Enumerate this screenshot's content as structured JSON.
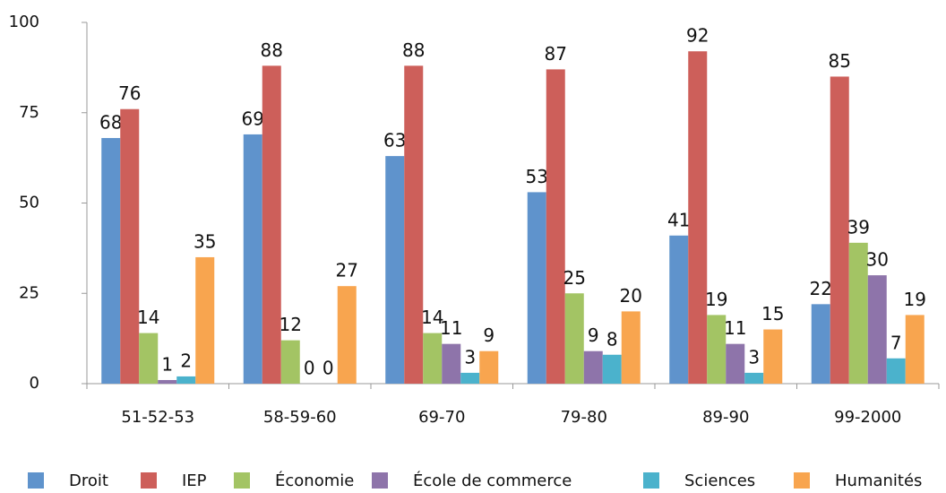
{
  "chart_data": {
    "type": "bar",
    "categories": [
      "51-52-53",
      "58-59-60",
      "69-70",
      "79-80",
      "89-90",
      "99-2000"
    ],
    "series": [
      {
        "name": "Droit",
        "color": "#5f93cc",
        "values": [
          68,
          69,
          63,
          53,
          41,
          22
        ]
      },
      {
        "name": "IEP",
        "color": "#cd5f5a",
        "values": [
          76,
          88,
          88,
          87,
          92,
          85
        ]
      },
      {
        "name": "Économie",
        "color": "#a3c464",
        "values": [
          14,
          12,
          14,
          25,
          19,
          39
        ]
      },
      {
        "name": "École de commerce",
        "color": "#8e74aa",
        "values": [
          1,
          0,
          11,
          9,
          11,
          30
        ]
      },
      {
        "name": "Sciences",
        "color": "#4bb2cc",
        "values": [
          2,
          0,
          3,
          8,
          3,
          7
        ]
      },
      {
        "name": "Humanités",
        "color": "#f8a54f",
        "values": [
          35,
          27,
          9,
          20,
          15,
          19
        ]
      }
    ],
    "ylim": [
      0,
      100
    ],
    "yticks": [
      0,
      25,
      50,
      75,
      100
    ],
    "grid": false,
    "legend": "bottom"
  }
}
